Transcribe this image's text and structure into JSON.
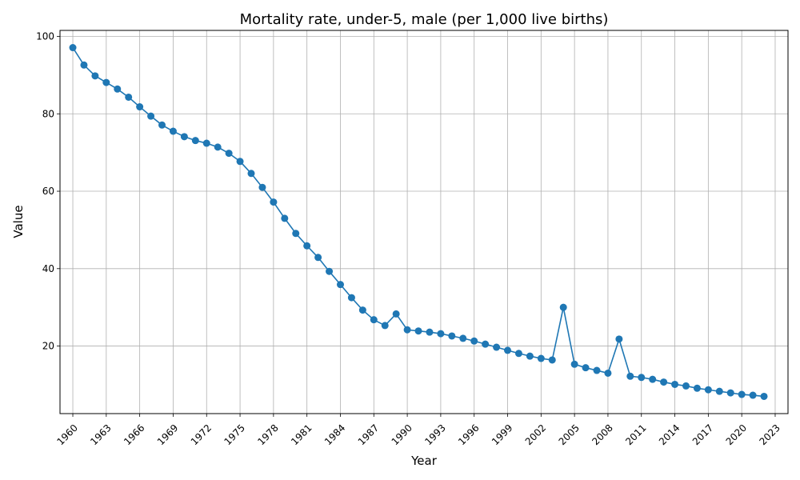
{
  "chart_data": {
    "type": "line",
    "title": "Mortality rate, under-5, male (per 1,000 live births)",
    "xlabel": "Year",
    "ylabel": "Value",
    "xlim": [
      1958.85,
      2024.15
    ],
    "ylim": [
      2.55,
      101.55
    ],
    "grid": true,
    "marker": "circle",
    "line_color": "#1f77b4",
    "x_ticks": [
      1960,
      1963,
      1966,
      1969,
      1972,
      1975,
      1978,
      1981,
      1984,
      1987,
      1990,
      1993,
      1996,
      1999,
      2002,
      2005,
      2008,
      2011,
      2014,
      2017,
      2020,
      2023
    ],
    "y_ticks": [
      20,
      40,
      60,
      80,
      100
    ],
    "x": [
      1960,
      1961,
      1962,
      1963,
      1964,
      1965,
      1966,
      1967,
      1968,
      1969,
      1970,
      1971,
      1972,
      1973,
      1974,
      1975,
      1976,
      1977,
      1978,
      1979,
      1980,
      1981,
      1982,
      1983,
      1984,
      1985,
      1986,
      1987,
      1988,
      1989,
      1990,
      1991,
      1992,
      1993,
      1994,
      1995,
      1996,
      1997,
      1998,
      1999,
      2000,
      2001,
      2002,
      2003,
      2004,
      2005,
      2006,
      2007,
      2008,
      2009,
      2010,
      2011,
      2012,
      2013,
      2014,
      2015,
      2016,
      2017,
      2018,
      2019,
      2020,
      2021,
      2022
    ],
    "series": [
      {
        "values": [
          97.1,
          92.6,
          89.8,
          88.1,
          86.4,
          84.3,
          81.8,
          79.4,
          77.1,
          75.5,
          74.1,
          73.1,
          72.4,
          71.4,
          69.8,
          67.7,
          64.6,
          61.0,
          57.2,
          53.0,
          49.1,
          45.9,
          42.9,
          39.3,
          35.9,
          32.5,
          29.3,
          26.8,
          25.3,
          28.3,
          24.2,
          23.9,
          23.6,
          23.2,
          22.6,
          22.0,
          21.3,
          20.5,
          19.7,
          18.9,
          18.1,
          17.4,
          16.8,
          16.4,
          30.0,
          15.3,
          14.4,
          13.7,
          13.0,
          21.8,
          12.2,
          11.9,
          11.4,
          10.7,
          10.1,
          9.7,
          9.1,
          8.7,
          8.3,
          7.9,
          7.5,
          7.3,
          7.0
        ]
      }
    ]
  }
}
